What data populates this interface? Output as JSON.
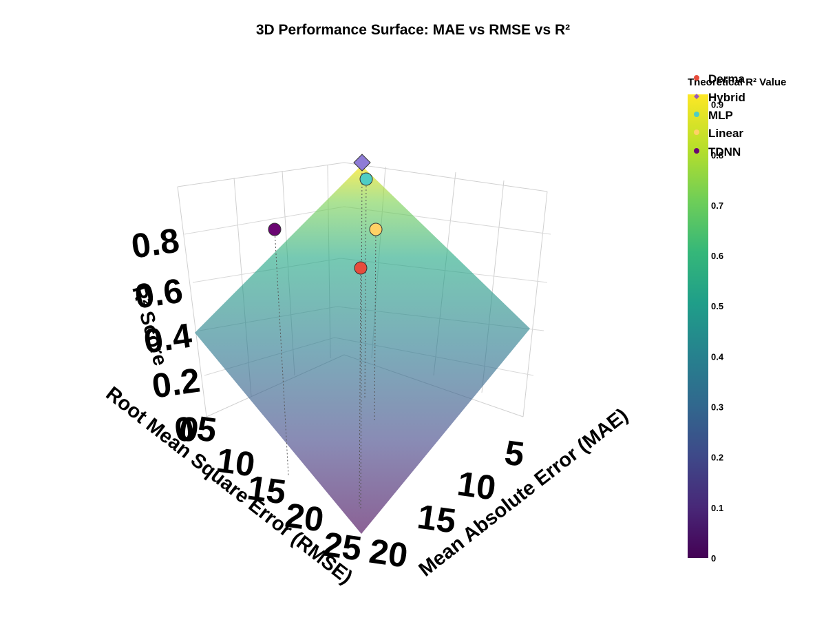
{
  "chart_data": {
    "type": "scatter3d_surface",
    "title": "3D Performance Surface: MAE vs RMSE vs R²",
    "axes": {
      "x": {
        "title": "Mean Absolute Error (MAE)",
        "ticks": [
          5,
          10,
          15,
          20
        ],
        "range": [
          0,
          22
        ]
      },
      "y": {
        "title": "Root Mean Square Error (RMSE)",
        "ticks": [
          0,
          5,
          10,
          15,
          20,
          25
        ],
        "range": [
          0,
          27
        ]
      },
      "z": {
        "title": "R² Score",
        "ticks": [
          "0",
          "0.2",
          "0.4",
          "0.6",
          "0.8"
        ],
        "range": [
          0,
          0.9
        ]
      }
    },
    "surface": {
      "name": "Theoretical R² Value",
      "colorscale": "Viridis",
      "opacity": 0.6,
      "colorbar": {
        "title": "Theoretical R² Value",
        "ticks": [
          "0",
          "0.1",
          "0.2",
          "0.3",
          "0.4",
          "0.5",
          "0.6",
          "0.7",
          "0.8",
          "0.9"
        ]
      }
    },
    "series": [
      {
        "name": "Derma",
        "color": "#e74c3c",
        "symbol": "circle"
      },
      {
        "name": "Hybrid",
        "color": "#9b59b6",
        "symbol": "diamond"
      },
      {
        "name": "MLP",
        "color": "#4ecdc4",
        "symbol": "circle"
      },
      {
        "name": "Linear",
        "color": "#ffd166",
        "symbol": "circle"
      },
      {
        "name": "TDNN",
        "color": "#6a0572",
        "symbol": "circle"
      }
    ],
    "legend_placement": "top-right",
    "grid": true
  }
}
